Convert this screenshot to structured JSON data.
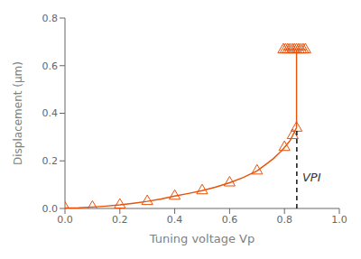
{
  "chart_data": {
    "type": "line",
    "title": "",
    "xlabel": "Tuning voltage Vp",
    "ylabel": "Displacement (μm)",
    "xlim": [
      0,
      1.0
    ],
    "ylim": [
      0,
      0.8
    ],
    "xticks": [
      {
        "value": 0,
        "label": "0.0"
      },
      0.2,
      0.4,
      0.6,
      0.8,
      {
        "value": 1.0,
        "label": "1.0"
      }
    ],
    "yticks": [
      {
        "value": 0,
        "label": "0.0"
      },
      0.2,
      0.4,
      0.6,
      0.8
    ],
    "grid": false,
    "series": [
      {
        "color": "#E8520A",
        "line_style": "solid",
        "x": [
          0.0,
          0.02,
          0.05,
          0.1,
          0.15,
          0.2,
          0.25,
          0.3,
          0.35,
          0.4,
          0.45,
          0.5,
          0.55,
          0.6,
          0.65,
          0.7,
          0.72,
          0.74,
          0.76,
          0.78,
          0.79,
          0.8,
          0.81,
          0.82,
          0.825,
          0.83,
          0.835,
          0.838,
          0.841,
          0.844
        ],
        "values": [
          0.002,
          0.002,
          0.003,
          0.006,
          0.01,
          0.015,
          0.022,
          0.03,
          0.04,
          0.052,
          0.063,
          0.075,
          0.09,
          0.108,
          0.13,
          0.158,
          0.175,
          0.192,
          0.21,
          0.232,
          0.243,
          0.257,
          0.27,
          0.285,
          0.295,
          0.307,
          0.318,
          0.326,
          0.333,
          0.338
        ]
      },
      {
        "color": "#E8520A",
        "line_style": "solid",
        "x": [
          0.844,
          0.844
        ],
        "values": [
          0.338,
          0.665
        ]
      },
      {
        "color": "#E8520A",
        "line_style": "solid",
        "x": [
          0.796,
          0.8,
          0.804,
          0.808,
          0.812,
          0.816,
          0.82,
          0.824,
          0.828,
          0.832,
          0.836,
          0.84,
          0.844,
          0.848,
          0.852,
          0.856,
          0.86,
          0.864,
          0.868,
          0.872,
          0.876,
          0.88
        ],
        "values": [
          0.667,
          0.667,
          0.667,
          0.667,
          0.667,
          0.667,
          0.667,
          0.667,
          0.667,
          0.667,
          0.667,
          0.667,
          0.667,
          0.667,
          0.667,
          0.667,
          0.667,
          0.667,
          0.667,
          0.667,
          0.667,
          0.667
        ]
      },
      {
        "color": "#E8520A",
        "line_style": "none",
        "marker": "triangle",
        "x": [
          0.0,
          0.1,
          0.2,
          0.3,
          0.4,
          0.5,
          0.6,
          0.7,
          0.8,
          0.83,
          0.844
        ],
        "values": [
          0.002,
          0.006,
          0.015,
          0.03,
          0.052,
          0.075,
          0.108,
          0.158,
          0.257,
          0.307,
          0.338
        ]
      },
      {
        "color": "#E8520A",
        "line_style": "none",
        "marker": "triangle",
        "x": [
          0.796,
          0.804,
          0.812,
          0.82,
          0.828,
          0.836,
          0.844,
          0.852,
          0.86,
          0.868,
          0.876
        ],
        "values": [
          0.667,
          0.667,
          0.667,
          0.667,
          0.667,
          0.667,
          0.667,
          0.667,
          0.667,
          0.667,
          0.667
        ]
      },
      {
        "color": "black",
        "line_style": "dashed",
        "x": [
          0.845,
          0.845
        ],
        "values": [
          0,
          0.338
        ]
      }
    ],
    "annotations": [
      {
        "text": "VPI",
        "x": 0.865,
        "y": 0.13
      }
    ]
  }
}
